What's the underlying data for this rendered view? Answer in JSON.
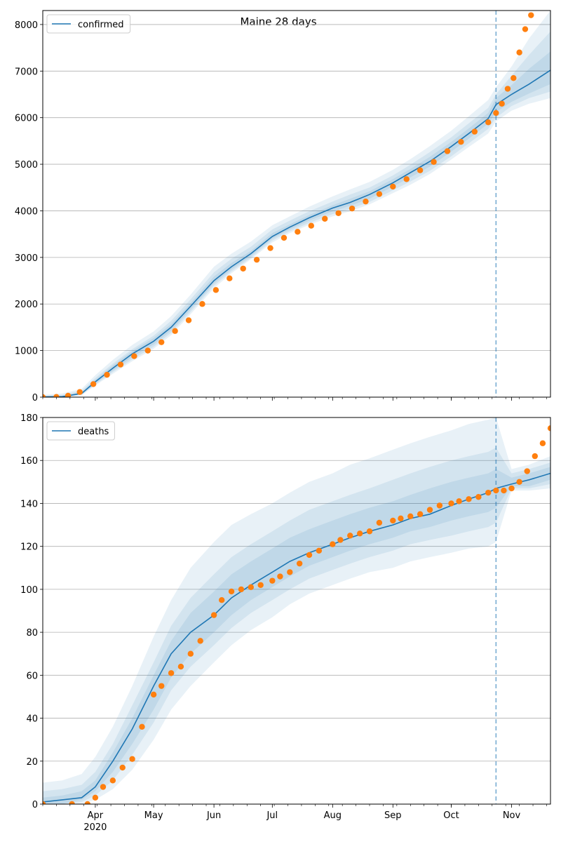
{
  "figure": {
    "title": "Maine 28 days"
  },
  "colors": {
    "model": "#1f77b4",
    "observed": "#ff7f0e",
    "band": "#1f77b4",
    "grid": "#b0b0b0"
  },
  "x_axis": {
    "type": "date",
    "range": [
      "2020-03-05",
      "2020-11-21"
    ],
    "tick_labels": [
      {
        "date": "2020-04-01",
        "label": "Apr",
        "sublabel": "2020"
      },
      {
        "date": "2020-05-01",
        "label": "May",
        "sublabel": ""
      },
      {
        "date": "2020-06-01",
        "label": "Jun",
        "sublabel": ""
      },
      {
        "date": "2020-07-01",
        "label": "Jul",
        "sublabel": ""
      },
      {
        "date": "2020-08-01",
        "label": "Aug",
        "sublabel": ""
      },
      {
        "date": "2020-09-01",
        "label": "Sep",
        "sublabel": ""
      },
      {
        "date": "2020-10-01",
        "label": "Oct",
        "sublabel": ""
      },
      {
        "date": "2020-11-01",
        "label": "Nov",
        "sublabel": ""
      }
    ],
    "forecast_start": "2020-10-24"
  },
  "chart_data": [
    {
      "type": "line",
      "legend": {
        "label": "confirmed",
        "position": "upper-left"
      },
      "grid": true,
      "ylim": [
        0,
        8300
      ],
      "yticks": [
        0,
        1000,
        2000,
        3000,
        4000,
        5000,
        6000,
        7000,
        8000
      ],
      "model_line": {
        "name": "confirmed",
        "x": [
          "2020-03-05",
          "2020-03-15",
          "2020-03-25",
          "2020-04-01",
          "2020-04-10",
          "2020-04-20",
          "2020-05-01",
          "2020-05-10",
          "2020-05-20",
          "2020-06-01",
          "2020-06-10",
          "2020-06-20",
          "2020-07-01",
          "2020-07-10",
          "2020-07-20",
          "2020-08-01",
          "2020-08-10",
          "2020-08-20",
          "2020-09-01",
          "2020-09-10",
          "2020-09-20",
          "2020-10-01",
          "2020-10-10",
          "2020-10-20",
          "2020-10-24",
          "2020-11-01",
          "2020-11-10",
          "2020-11-21"
        ],
        "y": [
          5,
          10,
          80,
          330,
          620,
          930,
          1200,
          1500,
          1950,
          2500,
          2800,
          3080,
          3450,
          3650,
          3850,
          4060,
          4180,
          4350,
          4600,
          4820,
          5060,
          5380,
          5660,
          5980,
          6280,
          6500,
          6720,
          7020
        ]
      },
      "bands": [
        {
          "lower": [
            0,
            0,
            40,
            250,
            500,
            770,
            1040,
            1330,
            1780,
            2340,
            2660,
            2960,
            3320,
            3520,
            3700,
            3880,
            3990,
            4140,
            4380,
            4560,
            4790,
            5100,
            5370,
            5660,
            5920,
            6150,
            6300,
            6420
          ],
          "upper": [
            50,
            80,
            180,
            470,
            800,
            1120,
            1410,
            1740,
            2200,
            2800,
            3080,
            3340,
            3690,
            3880,
            4090,
            4310,
            4460,
            4620,
            4880,
            5110,
            5390,
            5720,
            6030,
            6380,
            6650,
            7100,
            7700,
            8300
          ]
        },
        {
          "lower": [
            0,
            0,
            50,
            270,
            540,
            810,
            1080,
            1380,
            1830,
            2390,
            2700,
            2990,
            3360,
            3560,
            3740,
            3930,
            4040,
            4190,
            4440,
            4630,
            4860,
            5170,
            5450,
            5760,
            6000,
            6250,
            6420,
            6560
          ],
          "upper": [
            30,
            50,
            140,
            410,
            720,
            1030,
            1320,
            1640,
            2100,
            2680,
            2970,
            3230,
            3600,
            3790,
            3990,
            4200,
            4350,
            4500,
            4760,
            4990,
            5260,
            5580,
            5880,
            6210,
            6500,
            6900,
            7350,
            7850
          ]
        },
        {
          "lower": [
            0,
            3,
            60,
            290,
            570,
            860,
            1130,
            1430,
            1880,
            2440,
            2740,
            3030,
            3400,
            3600,
            3790,
            3990,
            4110,
            4260,
            4520,
            4720,
            4950,
            5270,
            5550,
            5870,
            6120,
            6340,
            6520,
            6720
          ],
          "upper": [
            20,
            30,
            110,
            370,
            680,
            990,
            1270,
            1570,
            2020,
            2590,
            2880,
            3140,
            3520,
            3710,
            3910,
            4120,
            4260,
            4420,
            4680,
            4900,
            5160,
            5480,
            5770,
            6100,
            6420,
            6700,
            7050,
            7420
          ]
        }
      ],
      "observed": {
        "name": "observed",
        "x": [
          "2020-03-05",
          "2020-03-12",
          "2020-03-18",
          "2020-03-24",
          "2020-03-31",
          "2020-04-07",
          "2020-04-14",
          "2020-04-21",
          "2020-04-28",
          "2020-05-05",
          "2020-05-12",
          "2020-05-19",
          "2020-05-26",
          "2020-06-02",
          "2020-06-09",
          "2020-06-16",
          "2020-06-23",
          "2020-06-30",
          "2020-07-07",
          "2020-07-14",
          "2020-07-21",
          "2020-07-28",
          "2020-08-04",
          "2020-08-11",
          "2020-08-18",
          "2020-08-25",
          "2020-09-01",
          "2020-09-08",
          "2020-09-15",
          "2020-09-22",
          "2020-09-29",
          "2020-10-06",
          "2020-10-13",
          "2020-10-20",
          "2020-10-24",
          "2020-10-27",
          "2020-10-30",
          "2020-11-02",
          "2020-11-05",
          "2020-11-08",
          "2020-11-11"
        ],
        "y": [
          0,
          5,
          30,
          110,
          280,
          480,
          700,
          880,
          1000,
          1180,
          1420,
          1650,
          2000,
          2300,
          2550,
          2760,
          2950,
          3200,
          3420,
          3550,
          3680,
          3830,
          3950,
          4050,
          4200,
          4360,
          4520,
          4680,
          4870,
          5050,
          5280,
          5480,
          5700,
          5900,
          6100,
          6300,
          6620,
          6850,
          7400,
          7900,
          8200
        ]
      }
    },
    {
      "type": "line",
      "legend": {
        "label": "deaths",
        "position": "upper-left"
      },
      "grid": true,
      "ylim": [
        0,
        180
      ],
      "yticks": [
        0,
        20,
        40,
        60,
        80,
        100,
        120,
        140,
        160,
        180
      ],
      "model_line": {
        "name": "deaths",
        "x": [
          "2020-03-05",
          "2020-03-15",
          "2020-03-25",
          "2020-04-01",
          "2020-04-10",
          "2020-04-20",
          "2020-05-01",
          "2020-05-10",
          "2020-05-20",
          "2020-06-01",
          "2020-06-10",
          "2020-06-20",
          "2020-07-01",
          "2020-07-10",
          "2020-07-20",
          "2020-08-01",
          "2020-08-10",
          "2020-08-20",
          "2020-09-01",
          "2020-09-10",
          "2020-09-20",
          "2020-10-01",
          "2020-10-10",
          "2020-10-20",
          "2020-10-24",
          "2020-11-01",
          "2020-11-10",
          "2020-11-21"
        ],
        "y": [
          1,
          2,
          3,
          8,
          20,
          35,
          55,
          70,
          80,
          88,
          96,
          102,
          108,
          113,
          117,
          121,
          124,
          127,
          130,
          133,
          135,
          139,
          142,
          145,
          147,
          149,
          151,
          154
        ]
      },
      "bands": [
        {
          "lower": [
            0,
            0,
            0,
            2,
            7,
            16,
            30,
            44,
            55,
            66,
            74,
            81,
            87,
            93,
            98,
            102,
            105,
            108,
            110,
            113,
            115,
            117,
            119,
            120,
            122,
            146,
            146,
            147
          ],
          "upper": [
            10,
            11,
            14,
            22,
            36,
            55,
            78,
            95,
            110,
            122,
            130,
            135,
            140,
            145,
            150,
            154,
            158,
            161,
            165,
            168,
            171,
            174,
            177,
            179,
            180,
            156,
            158,
            162
          ]
        },
        {
          "lower": [
            0,
            0,
            1,
            4,
            11,
            23,
            38,
            53,
            64,
            74,
            82,
            89,
            95,
            100,
            105,
            109,
            112,
            115,
            118,
            121,
            123,
            125,
            127,
            129,
            131,
            147,
            147,
            149
          ],
          "upper": [
            6,
            7,
            9,
            15,
            28,
            46,
            66,
            83,
            96,
            107,
            115,
            121,
            127,
            132,
            137,
            141,
            144,
            147,
            151,
            154,
            157,
            160,
            162,
            164,
            166,
            154,
            156,
            159
          ]
        },
        {
          "lower": [
            0,
            0,
            2,
            6,
            15,
            28,
            44,
            59,
            70,
            80,
            88,
            95,
            101,
            106,
            111,
            115,
            118,
            121,
            124,
            127,
            129,
            132,
            134,
            136,
            138,
            148,
            148,
            151
          ],
          "upper": [
            3,
            4,
            6,
            11,
            24,
            40,
            60,
            76,
            89,
            99,
            107,
            113,
            119,
            124,
            128,
            132,
            135,
            138,
            141,
            144,
            147,
            150,
            152,
            154,
            156,
            152,
            154,
            157
          ]
        }
      ],
      "observed": {
        "name": "observed",
        "x": [
          "2020-03-05",
          "2020-03-20",
          "2020-03-28",
          "2020-04-01",
          "2020-04-05",
          "2020-04-10",
          "2020-04-15",
          "2020-04-20",
          "2020-04-25",
          "2020-05-01",
          "2020-05-05",
          "2020-05-10",
          "2020-05-15",
          "2020-05-20",
          "2020-05-25",
          "2020-06-01",
          "2020-06-05",
          "2020-06-10",
          "2020-06-15",
          "2020-06-20",
          "2020-06-25",
          "2020-07-01",
          "2020-07-05",
          "2020-07-10",
          "2020-07-15",
          "2020-07-20",
          "2020-07-25",
          "2020-08-01",
          "2020-08-05",
          "2020-08-10",
          "2020-08-15",
          "2020-08-20",
          "2020-08-25",
          "2020-09-01",
          "2020-09-05",
          "2020-09-10",
          "2020-09-15",
          "2020-09-20",
          "2020-09-25",
          "2020-10-01",
          "2020-10-05",
          "2020-10-10",
          "2020-10-15",
          "2020-10-20",
          "2020-10-24",
          "2020-10-28",
          "2020-11-01",
          "2020-11-05",
          "2020-11-09",
          "2020-11-13",
          "2020-11-17",
          "2020-11-21"
        ],
        "y": [
          0,
          0,
          0,
          3,
          8,
          11,
          17,
          21,
          36,
          51,
          55,
          61,
          64,
          70,
          76,
          88,
          95,
          99,
          100,
          101,
          102,
          104,
          106,
          108,
          112,
          116,
          118,
          121,
          123,
          125,
          126,
          127,
          131,
          132,
          133,
          134,
          135,
          137,
          139,
          140,
          141,
          142,
          143,
          145,
          146,
          146,
          147,
          150,
          155,
          162,
          168,
          175
        ]
      }
    }
  ]
}
